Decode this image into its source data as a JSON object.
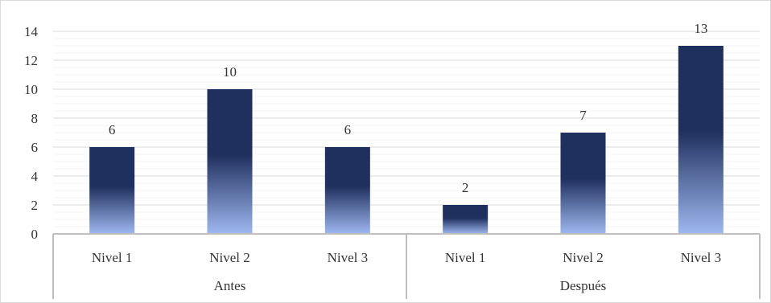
{
  "chart_data": {
    "type": "bar",
    "title": "",
    "xlabel": "",
    "ylabel": "",
    "ylim": [
      0,
      14
    ],
    "yticks": [
      0,
      2,
      4,
      6,
      8,
      10,
      12,
      14
    ],
    "grid": true,
    "legend": "none",
    "groups": [
      {
        "label": "Antes",
        "categories": [
          "Nivel 1",
          "Nivel 2",
          "Nivel 3"
        ],
        "values": [
          6,
          10,
          6
        ]
      },
      {
        "label": "Después",
        "categories": [
          "Nivel 1",
          "Nivel 2",
          "Nivel 3"
        ],
        "values": [
          2,
          7,
          13
        ]
      }
    ],
    "colors": {
      "bar_top": "#1f2f5e",
      "bar_bottom": "#9eb8ef",
      "grid": "#d9d9d9",
      "axis": "#bfbfbf"
    }
  }
}
